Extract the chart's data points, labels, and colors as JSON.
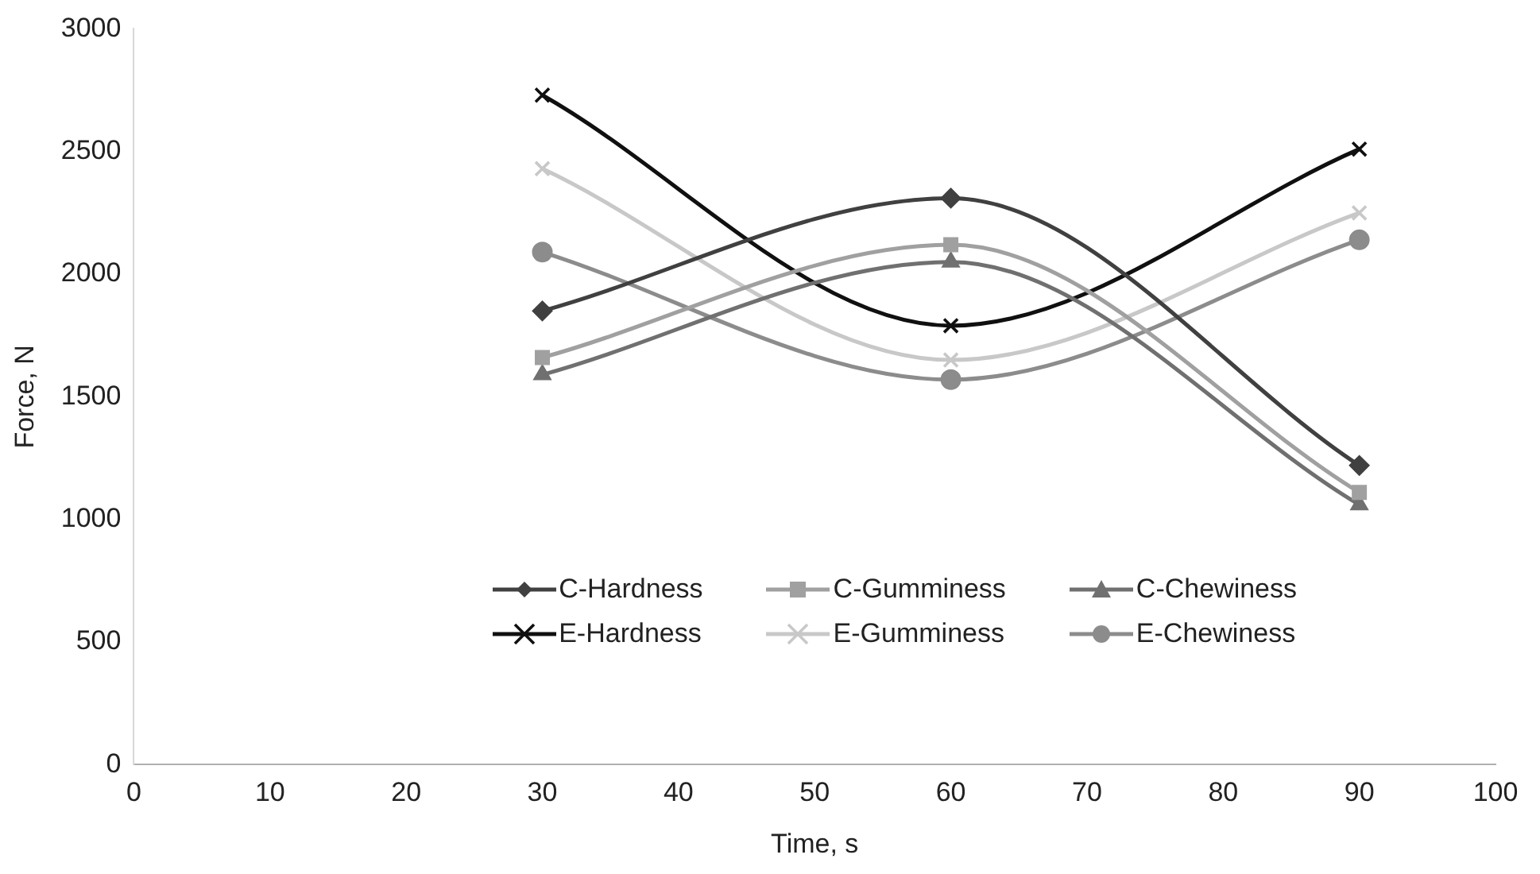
{
  "chart_data": {
    "type": "line",
    "xlabel": "Time, s",
    "ylabel": "Force, N",
    "x": [
      30,
      60,
      90
    ],
    "xlim": [
      0,
      100
    ],
    "xticks": [
      0,
      10,
      20,
      30,
      40,
      50,
      60,
      70,
      80,
      90,
      100
    ],
    "ylim": [
      0,
      3000
    ],
    "yticks": [
      0,
      500,
      1000,
      1500,
      2000,
      2500,
      3000
    ],
    "grid": false,
    "legend": "bottom",
    "series": [
      {
        "name": "C-Hardness",
        "color": "#404040",
        "marker": "diamond",
        "values": [
          1850,
          2310,
          1220
        ]
      },
      {
        "name": "C-Gumminess",
        "color": "#a0a0a0",
        "marker": "square",
        "values": [
          1660,
          2120,
          1110
        ]
      },
      {
        "name": "C-Chewiness",
        "color": "#707070",
        "marker": "triangle",
        "values": [
          1590,
          2050,
          1060
        ]
      },
      {
        "name": "E-Hardness",
        "color": "#101010",
        "marker": "cross",
        "values": [
          2730,
          1790,
          2510
        ]
      },
      {
        "name": "E-Gumminess",
        "color": "#c8c8c8",
        "marker": "cross",
        "values": [
          2430,
          1650,
          2250
        ]
      },
      {
        "name": "E-Chewiness",
        "color": "#8c8c8c",
        "marker": "circle",
        "values": [
          2090,
          1570,
          2140
        ]
      }
    ]
  }
}
